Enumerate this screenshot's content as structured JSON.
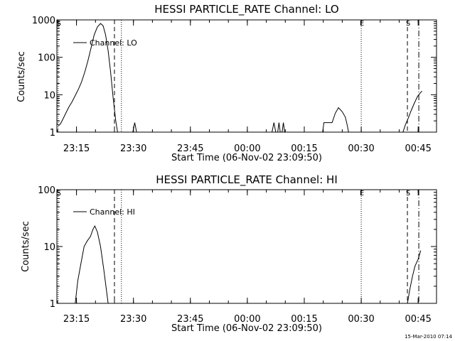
{
  "footer": {
    "timestamp": "15-Mar-2010 07:14"
  },
  "chart_data": [
    {
      "type": "line",
      "title": "HESSI PARTICLE_RATE Channel: LO",
      "xlabel": "Start Time (06-Nov-02 23:09:50)",
      "ylabel": "Counts/sec",
      "yscale": "log",
      "ylim": [
        1,
        1000
      ],
      "xlim_minutes_after_23:09:50": [
        0,
        100
      ],
      "x_ticks": [
        "23:15",
        "23:30",
        "23:45",
        "00:00",
        "00:15",
        "00:30",
        "00:45"
      ],
      "y_ticks": [
        "1",
        "10",
        "100",
        "1000"
      ],
      "legend": {
        "label": "Channel: LO",
        "position": "top-left"
      },
      "markers": [
        {
          "label": "S",
          "style": "dotted",
          "time": "23:10:10"
        },
        {
          "label": "",
          "style": "dashed",
          "time": "23:25:00"
        },
        {
          "label": "",
          "style": "dotted",
          "time": "23:26:50"
        },
        {
          "label": "E",
          "style": "dotted",
          "time": "00:30:00"
        },
        {
          "label": "S",
          "style": "dashed",
          "time": "00:42:10"
        },
        {
          "label": "",
          "style": "dashdot",
          "time": "00:45:10"
        }
      ],
      "series": [
        {
          "name": "Channel: LO",
          "segments": [
            [
              [
                "23:09:50",
                1.7
              ],
              [
                "23:10:20",
                1.5
              ],
              [
                "23:10:50",
                1.7
              ],
              [
                "23:11:30",
                2.3
              ],
              [
                "23:12:10",
                3.2
              ],
              [
                "23:13:00",
                4.7
              ],
              [
                "23:13:50",
                6.5
              ],
              [
                "23:14:40",
                9.5
              ],
              [
                "23:15:30",
                14
              ],
              [
                "23:16:20",
                22
              ],
              [
                "23:17:10",
                40
              ],
              [
                "23:18:00",
                80
              ],
              [
                "23:18:50",
                180
              ],
              [
                "23:19:40",
                400
              ],
              [
                "23:20:30",
                650
              ],
              [
                "23:21:20",
                800
              ],
              [
                "23:22:00",
                700
              ],
              [
                "23:22:40",
                400
              ],
              [
                "23:23:20",
                150
              ],
              [
                "23:24:00",
                40
              ],
              [
                "23:24:40",
                8
              ],
              [
                "23:25:20",
                2
              ],
              [
                "23:25:50",
                1
              ]
            ],
            [
              [
                "23:29:50",
                1
              ],
              [
                "23:30:20",
                1.8
              ],
              [
                "23:30:50",
                1
              ]
            ],
            [
              [
                "00:06:30",
                1
              ],
              [
                "00:07:00",
                1.8
              ],
              [
                "00:07:30",
                1
              ]
            ],
            [
              [
                "00:08:00",
                1
              ],
              [
                "00:08:20",
                1.8
              ],
              [
                "00:08:40",
                1
              ]
            ],
            [
              [
                "00:09:10",
                1
              ],
              [
                "00:09:30",
                1.8
              ],
              [
                "00:09:50",
                1
              ]
            ],
            [
              [
                "00:19:50",
                1
              ],
              [
                "00:20:10",
                1.8
              ],
              [
                "00:22:20",
                1.8
              ],
              [
                "00:23:10",
                3.2
              ],
              [
                "00:24:00",
                4.5
              ],
              [
                "00:25:00",
                3.5
              ],
              [
                "00:25:50",
                2.5
              ],
              [
                "00:26:20",
                1.5
              ],
              [
                "00:26:40",
                1
              ]
            ],
            [
              [
                "00:41:00",
                1
              ],
              [
                "00:41:40",
                1.6
              ],
              [
                "00:42:20",
                2.3
              ],
              [
                "00:43:10",
                3.8
              ],
              [
                "00:44:00",
                6
              ],
              [
                "00:44:50",
                9
              ],
              [
                "00:45:30",
                11
              ],
              [
                "00:46:00",
                12.5
              ]
            ]
          ]
        }
      ]
    },
    {
      "type": "line",
      "title": "HESSI PARTICLE_RATE Channel: HI",
      "xlabel": "Start Time (06-Nov-02 23:09:50)",
      "ylabel": "Counts/sec",
      "yscale": "log",
      "ylim": [
        1,
        100
      ],
      "xlim_minutes_after_23:09:50": [
        0,
        100
      ],
      "x_ticks": [
        "23:15",
        "23:30",
        "23:45",
        "00:00",
        "00:15",
        "00:30",
        "00:45"
      ],
      "y_ticks": [
        "1",
        "10",
        "100"
      ],
      "legend": {
        "label": "Channel: HI",
        "position": "top-left"
      },
      "markers": [
        {
          "label": "S",
          "style": "dotted",
          "time": "23:10:10"
        },
        {
          "label": "",
          "style": "dashed",
          "time": "23:25:00"
        },
        {
          "label": "",
          "style": "dotted",
          "time": "23:26:50"
        },
        {
          "label": "E",
          "style": "dotted",
          "time": "00:30:00"
        },
        {
          "label": "S",
          "style": "dashed",
          "time": "00:42:10"
        },
        {
          "label": "",
          "style": "dashdot",
          "time": "00:45:10"
        }
      ],
      "series": [
        {
          "name": "Channel: HI",
          "segments": [
            [
              [
                "23:14:40",
                1
              ],
              [
                "23:15:20",
                2.5
              ],
              [
                "23:16:10",
                5
              ],
              [
                "23:17:00",
                10
              ],
              [
                "23:17:50",
                12.5
              ],
              [
                "23:18:40",
                15
              ],
              [
                "23:19:20",
                20
              ],
              [
                "23:19:50",
                23
              ],
              [
                "23:20:30",
                18
              ],
              [
                "23:21:20",
                10
              ],
              [
                "23:22:10",
                4
              ],
              [
                "23:23:00",
                1.5
              ],
              [
                "23:23:20",
                1
              ]
            ],
            [
              [
                "00:42:10",
                1
              ],
              [
                "00:42:50",
                1.8
              ],
              [
                "00:43:30",
                3
              ],
              [
                "00:44:10",
                4.5
              ],
              [
                "00:45:00",
                6
              ],
              [
                "00:45:40",
                8.5
              ]
            ]
          ]
        }
      ]
    }
  ]
}
